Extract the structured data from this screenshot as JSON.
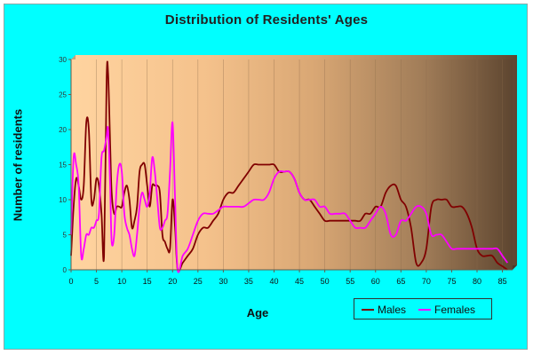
{
  "chart_data": {
    "type": "line",
    "title": "Distribution of Residents' Ages",
    "xlabel": "Age",
    "ylabel": "Number of residents",
    "xlim": [
      0,
      87
    ],
    "ylim": [
      0,
      30
    ],
    "xticks": [
      0,
      5,
      10,
      15,
      20,
      25,
      30,
      35,
      40,
      45,
      50,
      55,
      60,
      65,
      70,
      75,
      80,
      85
    ],
    "yticks": [
      0,
      5,
      10,
      15,
      20,
      25,
      30
    ],
    "grid": "vertical",
    "legend_position": "bottom-right",
    "series": [
      {
        "name": "Males",
        "color": "#800000",
        "points": [
          [
            0,
            2
          ],
          [
            0.5,
            9
          ],
          [
            1,
            13
          ],
          [
            1.5,
            12
          ],
          [
            2,
            10
          ],
          [
            2.5,
            12
          ],
          [
            3,
            21
          ],
          [
            3.5,
            20
          ],
          [
            4,
            10
          ],
          [
            4.5,
            10
          ],
          [
            5,
            13
          ],
          [
            5.5,
            12
          ],
          [
            6,
            8
          ],
          [
            6.5,
            2
          ],
          [
            7,
            27
          ],
          [
            7.3,
            28
          ],
          [
            7.7,
            18
          ],
          [
            8,
            11
          ],
          [
            8.5,
            8
          ],
          [
            9,
            9
          ],
          [
            9.5,
            9
          ],
          [
            10,
            9
          ],
          [
            10.5,
            11
          ],
          [
            11,
            12
          ],
          [
            11.5,
            10
          ],
          [
            12,
            6
          ],
          [
            12.5,
            7
          ],
          [
            13,
            9
          ],
          [
            13.5,
            14
          ],
          [
            14,
            15
          ],
          [
            14.5,
            15
          ],
          [
            15,
            12
          ],
          [
            15.5,
            9
          ],
          [
            16,
            12
          ],
          [
            16.5,
            12
          ],
          [
            17,
            12
          ],
          [
            17.5,
            11
          ],
          [
            18,
            5
          ],
          [
            18.5,
            4
          ],
          [
            19,
            3
          ],
          [
            19.5,
            3
          ],
          [
            20,
            10
          ],
          [
            20.5,
            6
          ],
          [
            21,
            0
          ],
          [
            22,
            1
          ],
          [
            23,
            2
          ],
          [
            24,
            3
          ],
          [
            25,
            5
          ],
          [
            26,
            6
          ],
          [
            27,
            6
          ],
          [
            28,
            7
          ],
          [
            29,
            8
          ],
          [
            30,
            10
          ],
          [
            31,
            11
          ],
          [
            32,
            11
          ],
          [
            33,
            12
          ],
          [
            34,
            13
          ],
          [
            35,
            14
          ],
          [
            36,
            15
          ],
          [
            37,
            15
          ],
          [
            38,
            15
          ],
          [
            39,
            15
          ],
          [
            40,
            15
          ],
          [
            41,
            14
          ],
          [
            42,
            14
          ],
          [
            43,
            14
          ],
          [
            44,
            13
          ],
          [
            45,
            11
          ],
          [
            46,
            10
          ],
          [
            47,
            10
          ],
          [
            48,
            9
          ],
          [
            49,
            8
          ],
          [
            50,
            7
          ],
          [
            51,
            7
          ],
          [
            52,
            7
          ],
          [
            53,
            7
          ],
          [
            54,
            7
          ],
          [
            55,
            7
          ],
          [
            56,
            7
          ],
          [
            57,
            7
          ],
          [
            58,
            8
          ],
          [
            59,
            8
          ],
          [
            60,
            9
          ],
          [
            61,
            9
          ],
          [
            62,
            11
          ],
          [
            63,
            12
          ],
          [
            64,
            12
          ],
          [
            65,
            10
          ],
          [
            66,
            9
          ],
          [
            67,
            6
          ],
          [
            68,
            1
          ],
          [
            69,
            1
          ],
          [
            70,
            3
          ],
          [
            71,
            9
          ],
          [
            72,
            10
          ],
          [
            73,
            10
          ],
          [
            74,
            10
          ],
          [
            75,
            9
          ],
          [
            76,
            9
          ],
          [
            77,
            9
          ],
          [
            78,
            8
          ],
          [
            79,
            6
          ],
          [
            80,
            3
          ],
          [
            81,
            2
          ],
          [
            82,
            2
          ],
          [
            83,
            2
          ],
          [
            84,
            1
          ],
          [
            85,
            0.5
          ],
          [
            86,
            0
          ]
        ]
      },
      {
        "name": "Females",
        "color": "#ff00ff",
        "points": [
          [
            0,
            5
          ],
          [
            0.5,
            16
          ],
          [
            1,
            15
          ],
          [
            1.5,
            12
          ],
          [
            2,
            2
          ],
          [
            2.5,
            3
          ],
          [
            3,
            5
          ],
          [
            3.5,
            5
          ],
          [
            4,
            6
          ],
          [
            4.5,
            6
          ],
          [
            5,
            7
          ],
          [
            5.5,
            8
          ],
          [
            6,
            16
          ],
          [
            6.5,
            17
          ],
          [
            7,
            19
          ],
          [
            7.3,
            20
          ],
          [
            7.7,
            12
          ],
          [
            8,
            4
          ],
          [
            8.5,
            5
          ],
          [
            9,
            12
          ],
          [
            9.5,
            15
          ],
          [
            10,
            14
          ],
          [
            10.5,
            8
          ],
          [
            11,
            6
          ],
          [
            11.5,
            5
          ],
          [
            12,
            3
          ],
          [
            12.5,
            2
          ],
          [
            13,
            5
          ],
          [
            13.5,
            9
          ],
          [
            14,
            11
          ],
          [
            14.5,
            10
          ],
          [
            15,
            9
          ],
          [
            15.5,
            11
          ],
          [
            16,
            16
          ],
          [
            16.5,
            14
          ],
          [
            17,
            10
          ],
          [
            17.5,
            6
          ],
          [
            18,
            6
          ],
          [
            18.5,
            7
          ],
          [
            19,
            8
          ],
          [
            19.5,
            14
          ],
          [
            20,
            21
          ],
          [
            20.5,
            10
          ],
          [
            21,
            0
          ],
          [
            22,
            2
          ],
          [
            23,
            3
          ],
          [
            24,
            5
          ],
          [
            25,
            7
          ],
          [
            26,
            8
          ],
          [
            27,
            8
          ],
          [
            28,
            8
          ],
          [
            29,
            8.5
          ],
          [
            30,
            9
          ],
          [
            31,
            9
          ],
          [
            32,
            9
          ],
          [
            33,
            9
          ],
          [
            34,
            9
          ],
          [
            35,
            9.5
          ],
          [
            36,
            10
          ],
          [
            37,
            10
          ],
          [
            38,
            10
          ],
          [
            39,
            11
          ],
          [
            40,
            13
          ],
          [
            41,
            14
          ],
          [
            42,
            14
          ],
          [
            43,
            14
          ],
          [
            44,
            13
          ],
          [
            45,
            11
          ],
          [
            46,
            10
          ],
          [
            47,
            10
          ],
          [
            48,
            10
          ],
          [
            49,
            9
          ],
          [
            50,
            9
          ],
          [
            51,
            8
          ],
          [
            52,
            8
          ],
          [
            53,
            8
          ],
          [
            54,
            8
          ],
          [
            55,
            7
          ],
          [
            56,
            6
          ],
          [
            57,
            6
          ],
          [
            58,
            6
          ],
          [
            59,
            7
          ],
          [
            60,
            8
          ],
          [
            61,
            9
          ],
          [
            62,
            8
          ],
          [
            63,
            5
          ],
          [
            64,
            5
          ],
          [
            65,
            7
          ],
          [
            66,
            7
          ],
          [
            67,
            8
          ],
          [
            68,
            9
          ],
          [
            69,
            9
          ],
          [
            70,
            8
          ],
          [
            71,
            5
          ],
          [
            72,
            5
          ],
          [
            73,
            5
          ],
          [
            74,
            4
          ],
          [
            75,
            3
          ],
          [
            76,
            3
          ],
          [
            77,
            3
          ],
          [
            78,
            3
          ],
          [
            79,
            3
          ],
          [
            80,
            3
          ],
          [
            81,
            3
          ],
          [
            82,
            3
          ],
          [
            83,
            3
          ],
          [
            84,
            3
          ],
          [
            85,
            2
          ],
          [
            86,
            1
          ]
        ]
      }
    ]
  }
}
